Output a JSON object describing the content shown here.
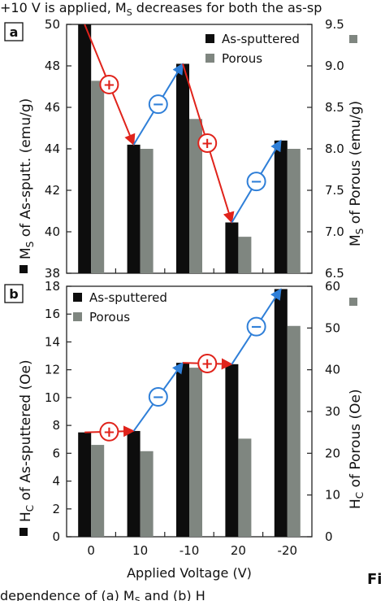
{
  "page": {
    "top_caption": "+10 V is applied, M",
    "top_caption_sub": "S",
    "top_caption_rest": " decreases for both the as-sp",
    "bottom_caption": "dependence of (a) M",
    "bottom_caption_sub": "S",
    "bottom_caption_rest": " and (b) H",
    "side_fragment": "Fi"
  },
  "colors": {
    "as_sputtered": "#0d0d0d",
    "porous": "#7f8680",
    "decrease_arrow": "#e0231b",
    "increase_arrow": "#2f7fd8"
  },
  "chart_data": [
    {
      "type": "bar",
      "panel_label": "a",
      "categories": [
        "0",
        "10",
        "-10",
        "20",
        "-20"
      ],
      "ylabel": "M",
      "ylabel_sub": "S",
      "ylabel_rest": " of As-sputt. (emu/g)",
      "ylim": [
        38,
        50
      ],
      "yticks": [
        38,
        40,
        42,
        44,
        46,
        48,
        50
      ],
      "y2label": "M",
      "y2label_sub": "S",
      "y2label_rest": " of Porous (emu/g)",
      "y2lim": [
        6.5,
        9.5
      ],
      "y2ticks": [
        "6.5",
        "7.0",
        "7.5",
        "8.0",
        "8.5",
        "9.0",
        "9.5"
      ],
      "series": [
        {
          "name": "As-sputtered",
          "axis": "left",
          "values": [
            50.0,
            44.2,
            48.1,
            40.45,
            44.4
          ]
        },
        {
          "name": "Porous",
          "axis": "right",
          "values": [
            8.82,
            8.0,
            8.36,
            6.94,
            8.0
          ]
        }
      ],
      "legend_position": "top-right",
      "annotations": [
        {
          "symbol": "+",
          "kind": "decrease",
          "from": 0,
          "to": 1
        },
        {
          "symbol": "−",
          "kind": "increase",
          "from": 1,
          "to": 2
        },
        {
          "symbol": "+",
          "kind": "decrease",
          "from": 2,
          "to": 3
        },
        {
          "symbol": "−",
          "kind": "increase",
          "from": 3,
          "to": 4
        }
      ]
    },
    {
      "type": "bar",
      "panel_label": "b",
      "categories": [
        "0",
        "10",
        "-10",
        "20",
        "-20"
      ],
      "xlabel": "Applied Voltage (V)",
      "ylabel": "H",
      "ylabel_sub": "C",
      "ylabel_rest": " of As-sputtered (Oe)",
      "ylim": [
        0,
        18
      ],
      "yticks": [
        0,
        2,
        4,
        6,
        8,
        10,
        12,
        14,
        16,
        18
      ],
      "y2label": "H",
      "y2label_sub": "C",
      "y2label_rest": " of Porous (Oe)",
      "y2lim": [
        0,
        60
      ],
      "y2ticks": [
        "0",
        "10",
        "20",
        "30",
        "40",
        "50",
        "60"
      ],
      "series": [
        {
          "name": "As-sputtered",
          "axis": "left",
          "values": [
            7.5,
            7.6,
            12.5,
            12.4,
            17.8
          ]
        },
        {
          "name": "Porous",
          "axis": "right",
          "values": [
            22,
            20.5,
            40.5,
            23.5,
            50.5
          ]
        }
      ],
      "legend_position": "top-left",
      "annotations": [
        {
          "symbol": "+",
          "kind": "decrease",
          "from": 0,
          "to": 1
        },
        {
          "symbol": "−",
          "kind": "increase",
          "from": 1,
          "to": 2
        },
        {
          "symbol": "+",
          "kind": "decrease",
          "from": 2,
          "to": 3
        },
        {
          "symbol": "−",
          "kind": "increase",
          "from": 3,
          "to": 4
        }
      ]
    }
  ]
}
